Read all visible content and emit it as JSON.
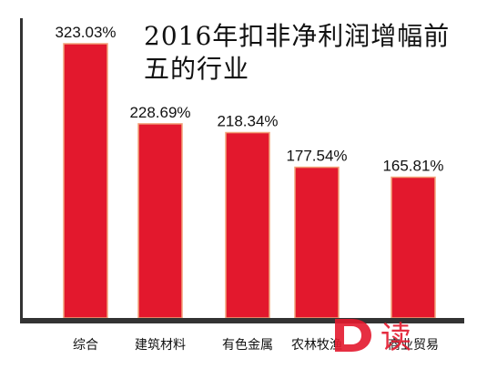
{
  "chart_data": {
    "type": "bar",
    "title": "2016年扣非净利润增幅前五的行业",
    "categories": [
      "综合",
      "建筑材料",
      "有色金属",
      "农林牧渔",
      "商业贸易"
    ],
    "values": [
      323.03,
      228.69,
      218.34,
      177.54,
      165.81
    ],
    "value_labels": [
      "323.03%",
      "228.69%",
      "218.34%",
      "177.54%",
      "165.81%"
    ],
    "xlabel": "",
    "ylabel": "",
    "ylim": [
      0,
      350
    ],
    "grid": false,
    "legend": "none"
  },
  "colors": {
    "bar": "#e3182d",
    "bar_edge": "#f2a37a",
    "axis": "#333333",
    "watermark": "#e3182d"
  },
  "watermark": {
    "icon": "d-reading-logo-icon",
    "text": "读"
  }
}
